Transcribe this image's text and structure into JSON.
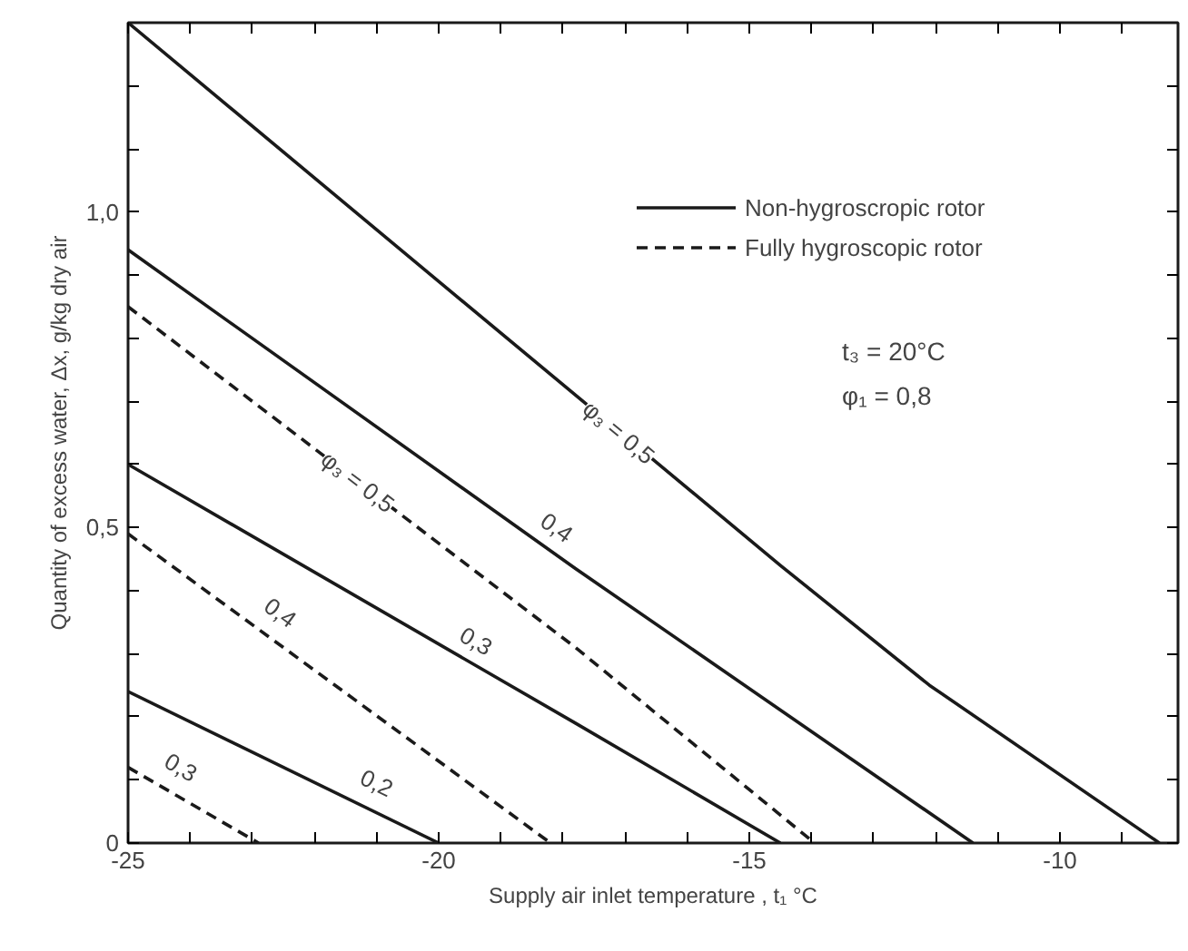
{
  "chart_data": {
    "type": "line",
    "xlabel": "Supply air inlet temperature , t₁ °C",
    "ylabel": "Quantity of excess water, Δx, g/kg dry air",
    "xlim": [
      -25,
      -8.1
    ],
    "ylim": [
      0,
      1.3
    ],
    "xticks": [
      -25,
      {
        "value": -24,
        "label": null
      },
      {
        "value": -23,
        "label": null
      },
      {
        "value": -22,
        "label": null
      },
      {
        "value": -21,
        "label": null
      },
      -20,
      {
        "value": -19,
        "label": null
      },
      {
        "value": -18,
        "label": null
      },
      {
        "value": -17,
        "label": null
      },
      {
        "value": -16,
        "label": null
      },
      -15,
      {
        "value": -14,
        "label": null
      },
      {
        "value": -13,
        "label": null
      },
      {
        "value": -12,
        "label": null
      },
      {
        "value": -11,
        "label": null
      },
      -10,
      {
        "value": -9,
        "label": null
      }
    ],
    "yticks": [
      0,
      {
        "value": 0.1,
        "label": null
      },
      {
        "value": 0.2,
        "label": null
      },
      {
        "value": 0.3,
        "label": null
      },
      {
        "value": 0.4,
        "label": null
      },
      {
        "value": 0.5,
        "label": "0,5"
      },
      {
        "value": 0.6,
        "label": null
      },
      {
        "value": 0.7,
        "label": null
      },
      {
        "value": 0.8,
        "label": null
      },
      {
        "value": 0.9,
        "label": null
      },
      {
        "value": 1.0,
        "label": "1,0"
      },
      {
        "value": 1.1,
        "label": null
      },
      {
        "value": 1.2,
        "label": null
      }
    ],
    "grid": false,
    "legend": "top right",
    "marker": "none",
    "series": [
      {
        "name": "Non-hygroscropic rotor",
        "color": "#1a1a1a",
        "line_style": "solid",
        "x": [
          -25,
          -20,
          -14.5,
          -12.1,
          -8.4
        ],
        "values": [
          1.3,
          0.89,
          0.44,
          0.25,
          0
        ]
      },
      {
        "color": "#1a1a1a",
        "line_style": "solid",
        "x": [
          -25,
          -17.8,
          -11.4
        ],
        "values": [
          0.94,
          0.435,
          0
        ]
      },
      {
        "color": "#1a1a1a",
        "line_style": "solid",
        "x": [
          -25,
          -17.8,
          -14.5
        ],
        "values": [
          0.6,
          0.19,
          0
        ]
      },
      {
        "color": "#1a1a1a",
        "line_style": "solid",
        "x": [
          -25,
          -20
        ],
        "values": [
          0.24,
          0
        ]
      },
      {
        "name": "Fully hygroscopic rotor",
        "color": "#1a1a1a",
        "line_style": "dashed",
        "x": [
          -25,
          -17.8,
          -13.95
        ],
        "values": [
          0.85,
          0.31,
          0
        ]
      },
      {
        "color": "#1a1a1a",
        "line_style": "dashed",
        "x": [
          -25,
          -18.2
        ],
        "values": [
          0.49,
          0
        ]
      },
      {
        "color": "#1a1a1a",
        "line_style": "dashed",
        "x": [
          -25,
          -22.9
        ],
        "values": [
          0.12,
          0
        ]
      }
    ],
    "annotations": [
      {
        "text": "φ₃ = 0,5",
        "x": -17.1,
        "y": 0.651
      },
      {
        "text": "0,4",
        "x": -18.1,
        "y": 0.5
      },
      {
        "text": "φ₃ = 0,5",
        "x": -21.3,
        "y": 0.5725
      },
      {
        "text": "0,3",
        "x": -19.4,
        "y": 0.32
      },
      {
        "text": "0,4",
        "x": -22.55,
        "y": 0.365
      },
      {
        "text": "0,2",
        "x": -21.0,
        "y": 0.095
      },
      {
        "text": "0,3",
        "x": -24.15,
        "y": 0.12
      },
      "t₃ = 20°C",
      "φ₁ = 0,8"
    ]
  }
}
